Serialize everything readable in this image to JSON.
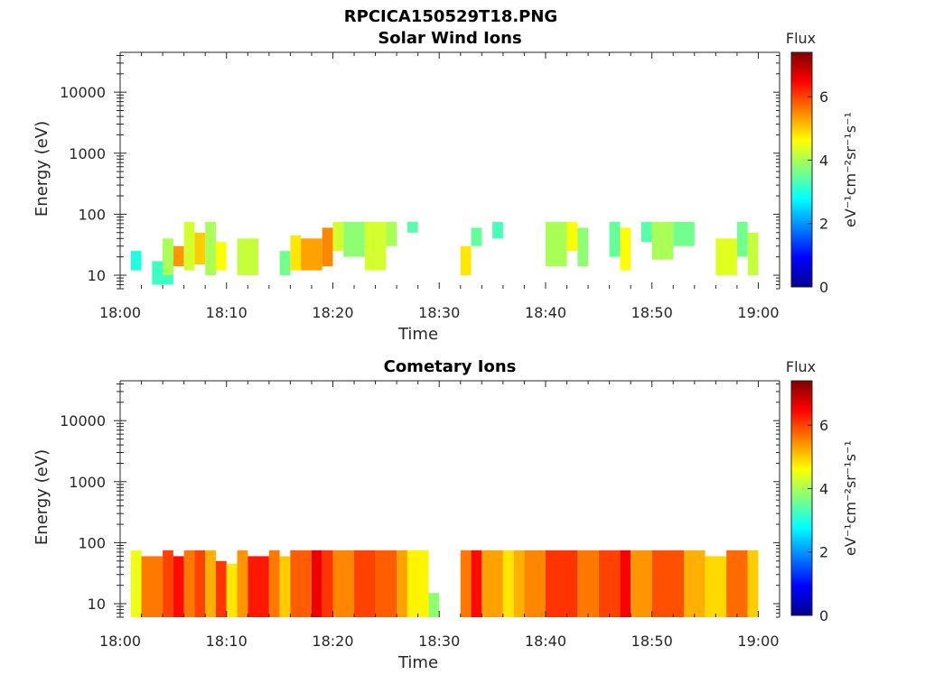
{
  "figure": {
    "title": "RPCICA150529T18.PNG"
  },
  "colormap": [
    "#00008f",
    "#0000ff",
    "#0080ff",
    "#00ffff",
    "#80ff80",
    "#ffff00",
    "#ff8000",
    "#ff0000",
    "#800000"
  ],
  "chart_data": [
    {
      "type": "heatmap",
      "title": "Solar Wind Ions",
      "xlabel": "Time",
      "ylabel": "Energy (eV)",
      "yscale": "log",
      "xlim": [
        "18:00",
        "19:02"
      ],
      "ylim": [
        6,
        45000
      ],
      "x_ticks": [
        "18:00",
        "18:10",
        "18:20",
        "18:30",
        "18:40",
        "18:50",
        "19:00"
      ],
      "y_ticks": [
        10,
        100,
        1000,
        10000
      ],
      "y_tick_labels": [
        "10",
        "100",
        "1000",
        "10000"
      ],
      "colorbar": {
        "label": "Flux",
        "units": "eV⁻¹cm⁻²sr⁻¹s⁻¹",
        "range": [
          0,
          7.4
        ],
        "ticks": [
          0,
          2,
          4,
          6
        ]
      },
      "blocks": [
        {
          "t": [
            "18:01",
            "18:02"
          ],
          "e": [
            12,
            25
          ],
          "v": 3.0
        },
        {
          "t": [
            "18:03",
            "18:05"
          ],
          "e": [
            7,
            17
          ],
          "v": 3.2
        },
        {
          "t": [
            "18:04",
            "18:05"
          ],
          "e": [
            10,
            40
          ],
          "v": 4.0
        },
        {
          "t": [
            "18:05",
            "18:06"
          ],
          "e": [
            14,
            30
          ],
          "v": 5.4
        },
        {
          "t": [
            "18:06",
            "18:07"
          ],
          "e": [
            12,
            75
          ],
          "v": 4.3
        },
        {
          "t": [
            "18:07",
            "18:08"
          ],
          "e": [
            15,
            50
          ],
          "v": 5.0
        },
        {
          "t": [
            "18:08",
            "18:09"
          ],
          "e": [
            10,
            75
          ],
          "v": 4.0
        },
        {
          "t": [
            "18:09",
            "18:10"
          ],
          "e": [
            12,
            35
          ],
          "v": 4.6
        },
        {
          "t": [
            "18:11",
            "18:13"
          ],
          "e": [
            10,
            40
          ],
          "v": 4.2
        },
        {
          "t": [
            "18:15",
            "18:16"
          ],
          "e": [
            10,
            25
          ],
          "v": 3.6
        },
        {
          "t": [
            "18:16",
            "18:17"
          ],
          "e": [
            12,
            45
          ],
          "v": 4.8
        },
        {
          "t": [
            "18:17",
            "18:19"
          ],
          "e": [
            12,
            40
          ],
          "v": 5.3
        },
        {
          "t": [
            "18:19",
            "18:20"
          ],
          "e": [
            14,
            60
          ],
          "v": 5.5
        },
        {
          "t": [
            "18:20",
            "18:21"
          ],
          "e": [
            25,
            75
          ],
          "v": 4.3
        },
        {
          "t": [
            "18:21",
            "18:23"
          ],
          "e": [
            20,
            75
          ],
          "v": 3.8
        },
        {
          "t": [
            "18:23",
            "18:25"
          ],
          "e": [
            12,
            75
          ],
          "v": 4.3
        },
        {
          "t": [
            "18:25",
            "18:26"
          ],
          "e": [
            30,
            75
          ],
          "v": 4.0
        },
        {
          "t": [
            "18:27",
            "18:28"
          ],
          "e": [
            50,
            75
          ],
          "v": 3.4
        },
        {
          "t": [
            "18:32",
            "18:33"
          ],
          "e": [
            10,
            30
          ],
          "v": 4.8
        },
        {
          "t": [
            "18:33",
            "18:34"
          ],
          "e": [
            30,
            60
          ],
          "v": 3.5
        },
        {
          "t": [
            "18:35",
            "18:36"
          ],
          "e": [
            40,
            75
          ],
          "v": 3.3
        },
        {
          "t": [
            "18:40",
            "18:42"
          ],
          "e": [
            14,
            75
          ],
          "v": 4.0
        },
        {
          "t": [
            "18:42",
            "18:43"
          ],
          "e": [
            25,
            75
          ],
          "v": 4.6
        },
        {
          "t": [
            "18:43",
            "18:44"
          ],
          "e": [
            14,
            60
          ],
          "v": 3.8
        },
        {
          "t": [
            "18:46",
            "18:47"
          ],
          "e": [
            20,
            75
          ],
          "v": 3.5
        },
        {
          "t": [
            "18:47",
            "18:48"
          ],
          "e": [
            12,
            60
          ],
          "v": 4.6
        },
        {
          "t": [
            "18:49",
            "18:50"
          ],
          "e": [
            35,
            75
          ],
          "v": 3.4
        },
        {
          "t": [
            "18:50",
            "18:52"
          ],
          "e": [
            18,
            75
          ],
          "v": 4.0
        },
        {
          "t": [
            "18:52",
            "18:54"
          ],
          "e": [
            30,
            75
          ],
          "v": 3.6
        },
        {
          "t": [
            "18:56",
            "18:58"
          ],
          "e": [
            10,
            40
          ],
          "v": 4.4
        },
        {
          "t": [
            "18:58",
            "18:59"
          ],
          "e": [
            20,
            75
          ],
          "v": 3.6
        },
        {
          "t": [
            "18:59",
            "19:00"
          ],
          "e": [
            10,
            50
          ],
          "v": 4.2
        }
      ]
    },
    {
      "type": "heatmap",
      "title": "Cometary Ions",
      "xlabel": "Time",
      "ylabel": "Energy (eV)",
      "yscale": "log",
      "xlim": [
        "18:00",
        "19:02"
      ],
      "ylim": [
        6,
        45000
      ],
      "x_ticks": [
        "18:00",
        "18:10",
        "18:20",
        "18:30",
        "18:40",
        "18:50",
        "19:00"
      ],
      "y_ticks": [
        10,
        100,
        1000,
        10000
      ],
      "y_tick_labels": [
        "10",
        "100",
        "1000",
        "10000"
      ],
      "colorbar": {
        "label": "Flux",
        "units": "eV⁻¹cm⁻²sr⁻¹s⁻¹",
        "range": [
          0,
          7.4
        ],
        "ticks": [
          0,
          2,
          4,
          6
        ]
      },
      "blocks": [
        {
          "t": [
            "18:01",
            "18:02"
          ],
          "e": [
            6,
            75
          ],
          "v": 4.5
        },
        {
          "t": [
            "18:02",
            "18:04"
          ],
          "e": [
            6,
            60
          ],
          "v": 5.6
        },
        {
          "t": [
            "18:04",
            "18:05"
          ],
          "e": [
            6,
            75
          ],
          "v": 6.0
        },
        {
          "t": [
            "18:05",
            "18:06"
          ],
          "e": [
            6,
            60
          ],
          "v": 6.4
        },
        {
          "t": [
            "18:06",
            "18:07"
          ],
          "e": [
            6,
            75
          ],
          "v": 5.6
        },
        {
          "t": [
            "18:07",
            "18:08"
          ],
          "e": [
            6,
            75
          ],
          "v": 6.0
        },
        {
          "t": [
            "18:08",
            "18:09"
          ],
          "e": [
            6,
            75
          ],
          "v": 5.2
        },
        {
          "t": [
            "18:09",
            "18:10"
          ],
          "e": [
            6,
            50
          ],
          "v": 6.1
        },
        {
          "t": [
            "18:10",
            "18:11"
          ],
          "e": [
            6,
            45
          ],
          "v": 4.8
        },
        {
          "t": [
            "18:11",
            "18:12"
          ],
          "e": [
            6,
            75
          ],
          "v": 5.4
        },
        {
          "t": [
            "18:12",
            "18:14"
          ],
          "e": [
            6,
            60
          ],
          "v": 6.3
        },
        {
          "t": [
            "18:14",
            "18:15"
          ],
          "e": [
            6,
            75
          ],
          "v": 5.6
        },
        {
          "t": [
            "18:15",
            "18:16"
          ],
          "e": [
            6,
            60
          ],
          "v": 5.0
        },
        {
          "t": [
            "18:16",
            "18:18"
          ],
          "e": [
            6,
            75
          ],
          "v": 5.8
        },
        {
          "t": [
            "18:18",
            "18:19"
          ],
          "e": [
            6,
            75
          ],
          "v": 6.6
        },
        {
          "t": [
            "18:19",
            "18:20"
          ],
          "e": [
            6,
            75
          ],
          "v": 6.1
        },
        {
          "t": [
            "18:20",
            "18:22"
          ],
          "e": [
            6,
            75
          ],
          "v": 5.5
        },
        {
          "t": [
            "18:22",
            "18:24"
          ],
          "e": [
            6,
            75
          ],
          "v": 6.0
        },
        {
          "t": [
            "18:24",
            "18:26"
          ],
          "e": [
            6,
            75
          ],
          "v": 5.8
        },
        {
          "t": [
            "18:26",
            "18:27"
          ],
          "e": [
            6,
            75
          ],
          "v": 5.3
        },
        {
          "t": [
            "18:27",
            "18:29"
          ],
          "e": [
            6,
            75
          ],
          "v": 4.7
        },
        {
          "t": [
            "18:29",
            "18:30"
          ],
          "e": [
            6,
            15
          ],
          "v": 3.8
        },
        {
          "t": [
            "18:32",
            "18:33"
          ],
          "e": [
            6,
            75
          ],
          "v": 5.6
        },
        {
          "t": [
            "18:33",
            "18:34"
          ],
          "e": [
            6,
            75
          ],
          "v": 6.4
        },
        {
          "t": [
            "18:34",
            "18:36"
          ],
          "e": [
            6,
            75
          ],
          "v": 5.3
        },
        {
          "t": [
            "18:36",
            "18:37"
          ],
          "e": [
            6,
            75
          ],
          "v": 4.8
        },
        {
          "t": [
            "18:37",
            "18:38"
          ],
          "e": [
            6,
            75
          ],
          "v": 5.2
        },
        {
          "t": [
            "18:38",
            "18:40"
          ],
          "e": [
            6,
            75
          ],
          "v": 5.5
        },
        {
          "t": [
            "18:40",
            "18:43"
          ],
          "e": [
            6,
            75
          ],
          "v": 6.1
        },
        {
          "t": [
            "18:43",
            "18:45"
          ],
          "e": [
            6,
            75
          ],
          "v": 5.6
        },
        {
          "t": [
            "18:45",
            "18:47"
          ],
          "e": [
            6,
            75
          ],
          "v": 6.0
        },
        {
          "t": [
            "18:47",
            "18:48"
          ],
          "e": [
            6,
            75
          ],
          "v": 6.5
        },
        {
          "t": [
            "18:48",
            "18:50"
          ],
          "e": [
            6,
            75
          ],
          "v": 5.4
        },
        {
          "t": [
            "18:50",
            "18:53"
          ],
          "e": [
            6,
            75
          ],
          "v": 5.9
        },
        {
          "t": [
            "18:53",
            "18:55"
          ],
          "e": [
            6,
            75
          ],
          "v": 5.2
        },
        {
          "t": [
            "18:55",
            "18:57"
          ],
          "e": [
            6,
            60
          ],
          "v": 4.9
        },
        {
          "t": [
            "18:57",
            "18:59"
          ],
          "e": [
            6,
            75
          ],
          "v": 5.7
        },
        {
          "t": [
            "18:59",
            "19:00"
          ],
          "e": [
            6,
            75
          ],
          "v": 5.0
        }
      ]
    }
  ]
}
